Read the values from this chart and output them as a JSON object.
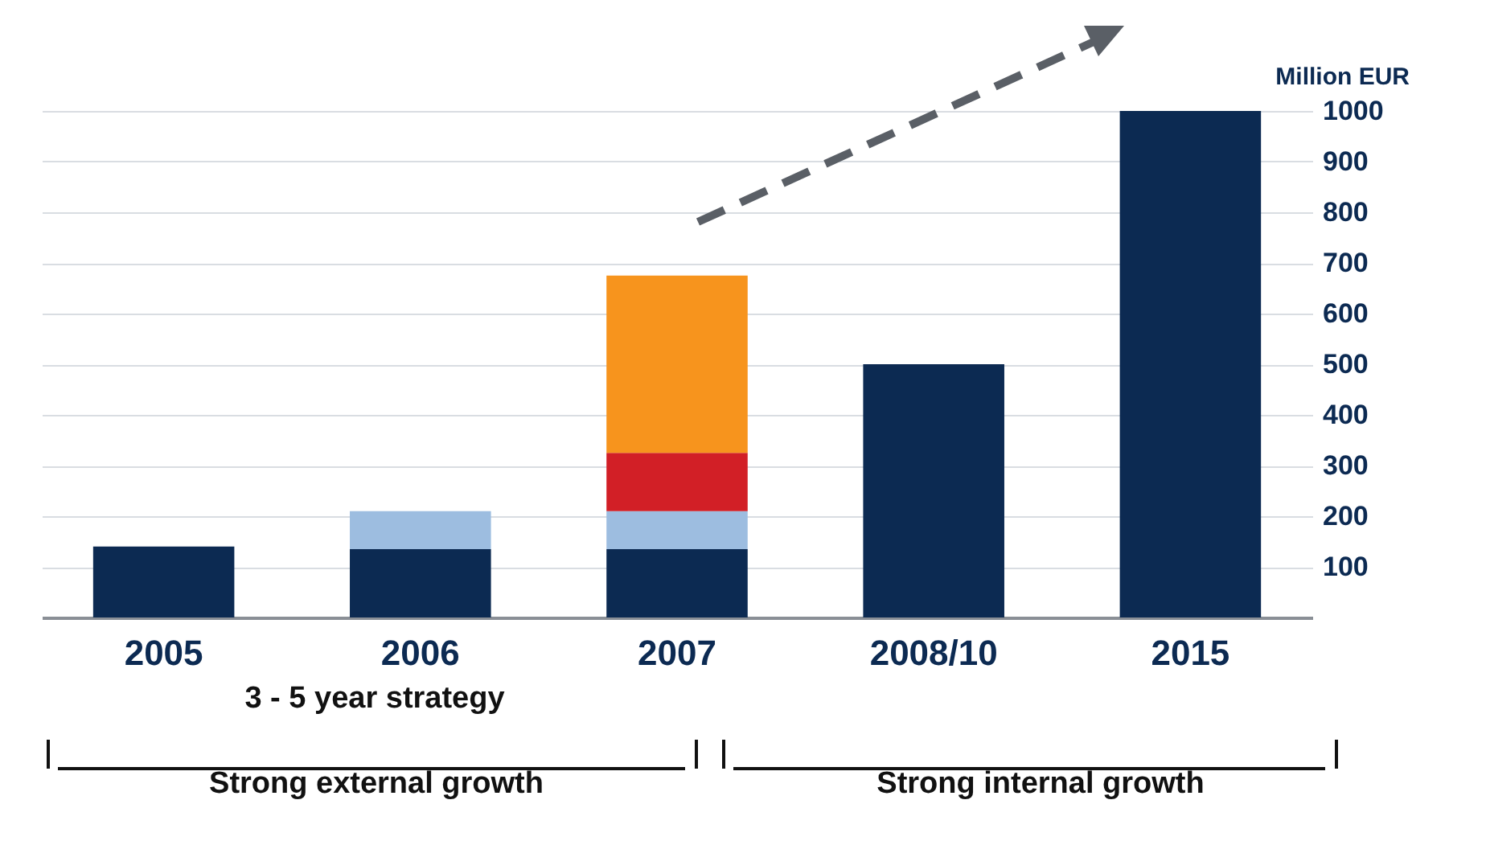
{
  "chart_data": {
    "type": "bar",
    "stacked": true,
    "ylabel": "Million EUR",
    "categories": [
      "2005",
      "2006",
      "2007",
      "2008/10",
      "2015"
    ],
    "series": [
      {
        "color": "#0c2a52",
        "values": [
          140,
          135,
          135,
          500,
          1000
        ]
      },
      {
        "color": "#9dbde0",
        "values": [
          null,
          75,
          75,
          null,
          null
        ]
      },
      {
        "color": "#d21f26",
        "values": [
          null,
          null,
          115,
          null,
          null
        ]
      },
      {
        "color": "#f7941d",
        "values": [
          null,
          null,
          350,
          null,
          null
        ]
      }
    ],
    "ylim": [
      0,
      1000
    ],
    "yticks": [
      100,
      200,
      300,
      400,
      500,
      600,
      700,
      800,
      900,
      1000
    ],
    "grid": "y",
    "legend": false,
    "annotations": [
      "3 - 5 year strategy",
      "Strong external growth",
      "Strong internal growth"
    ]
  }
}
